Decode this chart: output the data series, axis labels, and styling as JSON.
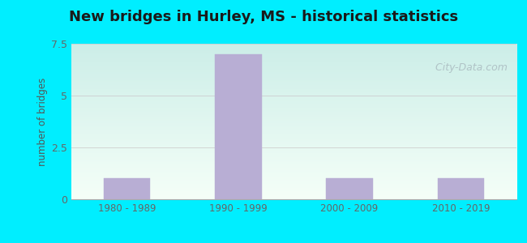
{
  "title": "New bridges in Hurley, MS - historical statistics",
  "categories": [
    "1980 - 1989",
    "1990 - 1999",
    "2000 - 2009",
    "2010 - 2019"
  ],
  "values": [
    1,
    7,
    1,
    1
  ],
  "bar_color": "#b8aed4",
  "bar_edge_color": "#b8aed4",
  "ylabel": "number of bridges",
  "ylim": [
    0,
    7.5
  ],
  "yticks": [
    0,
    2.5,
    5,
    7.5
  ],
  "background_outer": "#00eeff",
  "bg_top_left": "#e8f5ee",
  "bg_top_right": "#d0eeee",
  "bg_bottom": "#f8fff8",
  "grid_color": "#cccccc",
  "title_fontsize": 13,
  "title_color": "#1a1a1a",
  "axis_label_color": "#555555",
  "tick_label_color": "#666666",
  "watermark_text": "   City-Data.com",
  "watermark_color": "#aabbc0"
}
